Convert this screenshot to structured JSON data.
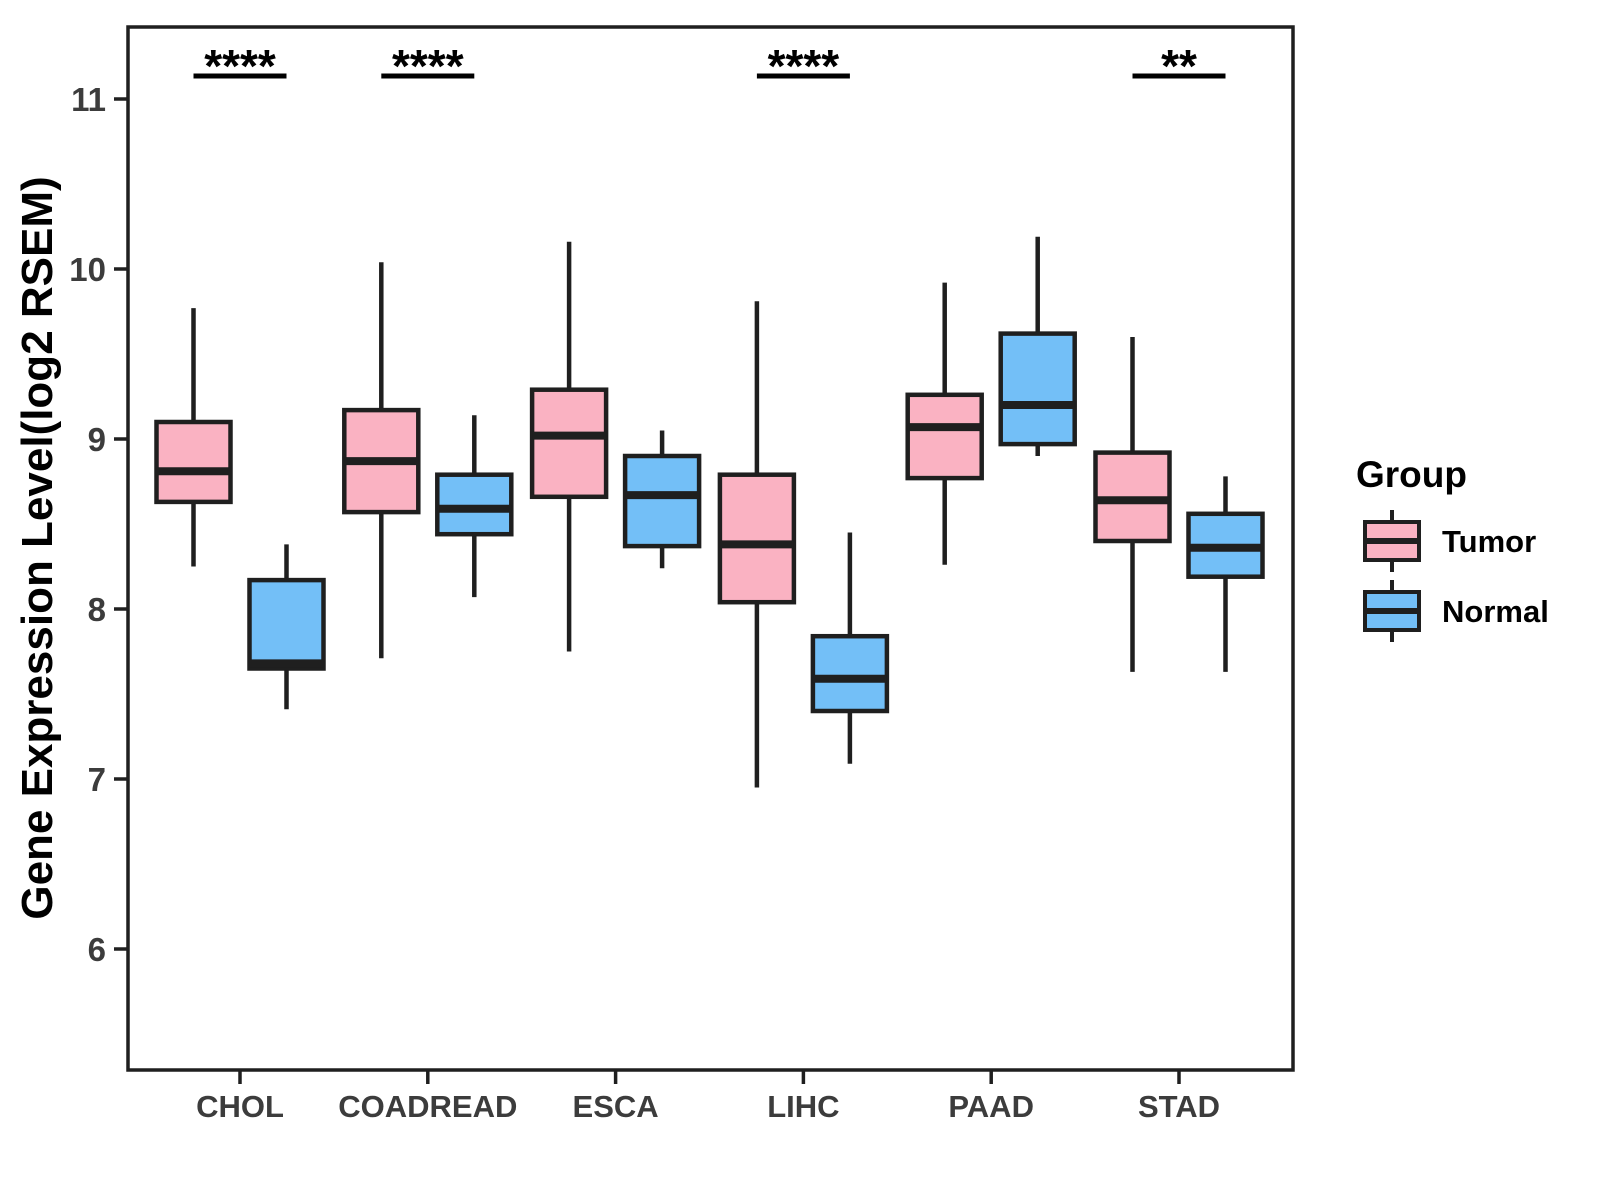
{
  "figure": {
    "legend": {
      "title": "Group",
      "entries": [
        {
          "label": "Tumor",
          "color": "#FAB2C2"
        },
        {
          "label": "Normal",
          "color": "#73BFF7"
        }
      ]
    }
  },
  "chart_data": {
    "type": "boxplot",
    "title": "",
    "xlabel": "",
    "ylabel": "Gene Expression Level(log2 RSEM)",
    "categories": [
      "CHOL",
      "COADREAD",
      "ESCA",
      "LIHC",
      "PAAD",
      "STAD"
    ],
    "yticks": [
      6,
      7,
      8,
      9,
      10,
      11
    ],
    "ylim": [
      5.3,
      11.4
    ],
    "grid": false,
    "legend_position": "right",
    "box_stroke_color": "#1F1F1F",
    "series": [
      {
        "name": "Tumor",
        "color": "#FAB2C2",
        "boxes": [
          {
            "category": "CHOL",
            "whisker_low": 8.25,
            "q1": 8.63,
            "median": 8.81,
            "q3": 9.1,
            "whisker_high": 9.77
          },
          {
            "category": "COADREAD",
            "whisker_low": 7.71,
            "q1": 8.57,
            "median": 8.87,
            "q3": 9.17,
            "whisker_high": 10.04
          },
          {
            "category": "ESCA",
            "whisker_low": 7.75,
            "q1": 8.66,
            "median": 9.02,
            "q3": 9.29,
            "whisker_high": 10.16
          },
          {
            "category": "LIHC",
            "whisker_low": 6.95,
            "q1": 8.04,
            "median": 8.38,
            "q3": 8.79,
            "whisker_high": 9.81
          },
          {
            "category": "PAAD",
            "whisker_low": 8.26,
            "q1": 8.77,
            "median": 9.07,
            "q3": 9.26,
            "whisker_high": 9.92
          },
          {
            "category": "STAD",
            "whisker_low": 7.63,
            "q1": 8.4,
            "median": 8.64,
            "q3": 8.92,
            "whisker_high": 9.6
          }
        ]
      },
      {
        "name": "Normal",
        "color": "#73BFF7",
        "boxes": [
          {
            "category": "CHOL",
            "whisker_low": 7.41,
            "q1": 7.65,
            "median": 7.68,
            "q3": 8.17,
            "whisker_high": 8.38
          },
          {
            "category": "COADREAD",
            "whisker_low": 8.07,
            "q1": 8.44,
            "median": 8.59,
            "q3": 8.79,
            "whisker_high": 9.14
          },
          {
            "category": "ESCA",
            "whisker_low": 8.24,
            "q1": 8.37,
            "median": 8.67,
            "q3": 8.9,
            "whisker_high": 9.05
          },
          {
            "category": "LIHC",
            "whisker_low": 7.09,
            "q1": 7.4,
            "median": 7.59,
            "q3": 7.84,
            "whisker_high": 8.45
          },
          {
            "category": "PAAD",
            "whisker_low": 8.9,
            "q1": 8.97,
            "median": 9.2,
            "q3": 9.62,
            "whisker_high": 10.19
          },
          {
            "category": "STAD",
            "whisker_low": 7.63,
            "q1": 8.19,
            "median": 8.36,
            "q3": 8.56,
            "whisker_high": 8.78
          }
        ]
      }
    ],
    "significance": [
      {
        "category": "CHOL",
        "label": "****"
      },
      {
        "category": "COADREAD",
        "label": "****"
      },
      {
        "category": "LIHC",
        "label": "****"
      },
      {
        "category": "STAD",
        "label": "**"
      }
    ]
  }
}
